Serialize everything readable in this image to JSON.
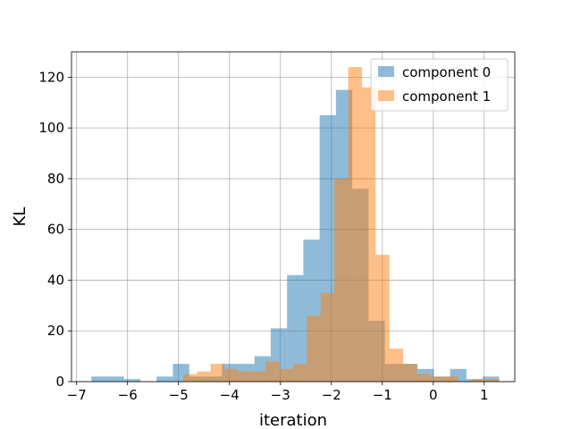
{
  "chart_data": {
    "type": "bar",
    "subtype": "overlaid-histogram",
    "xlabel": "iteration",
    "ylabel": "KL",
    "xlim": [
      -7.1,
      1.6
    ],
    "ylim": [
      0,
      130
    ],
    "xticks": [
      -7,
      -6,
      -5,
      -4,
      -3,
      -2,
      -1,
      0,
      1
    ],
    "xtick_labels": [
      "−7",
      "−6",
      "−5",
      "−4",
      "−3",
      "−2",
      "−1",
      "0",
      "1"
    ],
    "yticks": [
      0,
      20,
      40,
      60,
      80,
      100,
      120
    ],
    "ytick_labels": [
      "0",
      "20",
      "40",
      "60",
      "80",
      "100",
      "120"
    ],
    "grid": true,
    "legend_position": "top-right",
    "series": [
      {
        "name": "component 0",
        "color": "#1f77b4",
        "alpha": 0.5,
        "bin_edges": [
          -6.71,
          -6.39,
          -6.07,
          -5.75,
          -5.43,
          -5.11,
          -4.79,
          -4.47,
          -4.15,
          -3.83,
          -3.51,
          -3.19,
          -2.87,
          -2.55,
          -2.23,
          -1.91,
          -1.59,
          -1.27,
          -0.95,
          -0.63,
          -0.31,
          0.01,
          0.33,
          0.65,
          0.97,
          1.29
        ],
        "counts": [
          2,
          2,
          1,
          0,
          2,
          7,
          2,
          2,
          7,
          7,
          10,
          21,
          42,
          56,
          105,
          115,
          76,
          24,
          7,
          7,
          5,
          2,
          5,
          1,
          2
        ]
      },
      {
        "name": "component 1",
        "color": "#ff7f0e",
        "alpha": 0.5,
        "bin_edges": [
          -4.91,
          -4.64,
          -4.37,
          -4.1,
          -3.83,
          -3.56,
          -3.29,
          -3.02,
          -2.75,
          -2.48,
          -2.21,
          -1.94,
          -1.67,
          -1.4,
          -1.13,
          -0.86,
          -0.59,
          -0.32,
          -0.05,
          0.22,
          0.49,
          0.76,
          1.03,
          1.3
        ],
        "counts": [
          3,
          4,
          7,
          5,
          4,
          4,
          8,
          5,
          7,
          26,
          35,
          80,
          124,
          116,
          50,
          13,
          7,
          3,
          2,
          2,
          0,
          1,
          1
        ]
      }
    ]
  }
}
